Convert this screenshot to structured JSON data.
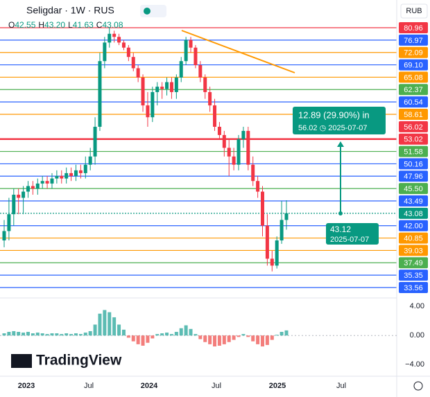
{
  "chart_data": {
    "type": "candlestick",
    "title": "Seligdar · 1W · RUS",
    "ohlc_header": [
      {
        "key": "O",
        "value": 42.55,
        "label": "42.55"
      },
      {
        "key": "H",
        "value": 43.2,
        "label": "43.20"
      },
      {
        "key": "L",
        "value": 41.63,
        "label": "41.63"
      },
      {
        "key": "C",
        "value": 43.08,
        "label": "43.08"
      }
    ],
    "currency": "RUB",
    "watermark": "TradingView",
    "x_labels": [
      "2023",
      "Jul",
      "2024",
      "Jul",
      "2025",
      "Jul"
    ],
    "levels": [
      {
        "value": 80.96,
        "label": "80.96",
        "color": "#f23645"
      },
      {
        "value": 76.97,
        "label": "76.97",
        "color": "#2962ff"
      },
      {
        "value": 72.09,
        "label": "72.09",
        "color": "#ff9800"
      },
      {
        "value": 69.1,
        "label": "69.10",
        "color": "#2962ff"
      },
      {
        "value": 65.08,
        "label": "65.08",
        "color": "#ff9800"
      },
      {
        "value": 62.37,
        "label": "62.37",
        "color": "#4caf50"
      },
      {
        "value": 60.54,
        "label": "60.54",
        "color": "#2962ff"
      },
      {
        "value": 58.61,
        "label": "58.61",
        "color": "#ff9800"
      },
      {
        "value": 56.02,
        "label": "56.02",
        "color": "#f23645",
        "style": "none"
      },
      {
        "value": 53.02,
        "label": "53.02",
        "color": "#f23645",
        "style": "thick"
      },
      {
        "value": 51.58,
        "label": "51.58",
        "color": "#4caf50"
      },
      {
        "value": 50.16,
        "label": "50.16",
        "color": "#2962ff"
      },
      {
        "value": 47.96,
        "label": "47.96",
        "color": "#2962ff"
      },
      {
        "value": 45.5,
        "label": "45.50",
        "color": "#4caf50"
      },
      {
        "value": 43.49,
        "label": "43.49",
        "color": "#2962ff"
      },
      {
        "value": 43.08,
        "label": "43.08",
        "color": "#089981",
        "style": "dotted"
      },
      {
        "value": 42,
        "label": "42.00",
        "color": "#2962ff"
      },
      {
        "value": 40.85,
        "label": "40.85",
        "color": "#ff9800"
      },
      {
        "value": 39.03,
        "label": "39.03",
        "color": "#ff9800"
      },
      {
        "value": 37.49,
        "label": "37.49",
        "color": "#4caf50"
      },
      {
        "value": 35.35,
        "label": "35.35",
        "color": "#2962ff"
      },
      {
        "value": 33.56,
        "label": "33.56",
        "color": "#2962ff"
      }
    ],
    "open": [
      40.5,
      41.5,
      43.0,
      44.5,
      44.0,
      45.0,
      46.0,
      45.5,
      46.5,
      47.0,
      46.5,
      47.5,
      48.0,
      47.5,
      48.5,
      48.0,
      49.0,
      48.5,
      50.0,
      51.0,
      56.0,
      70.0,
      76.0,
      79.0,
      78.0,
      76.0,
      74.0,
      71.0,
      68.0,
      65.0,
      60.0,
      58.0,
      62.0,
      63.0,
      62.5,
      64.0,
      62.0,
      65.0,
      70.0,
      77.0,
      74.0,
      69.0,
      65.0,
      62.0,
      60.0,
      56.0,
      54.0,
      52.0,
      51.0,
      50.0,
      53.0,
      55.0,
      50.0,
      47.0,
      45.0,
      42.0,
      38.0,
      37.0,
      40.5,
      42.5
    ],
    "high": [
      42.5,
      44.0,
      45.5,
      45.5,
      46.0,
      47.0,
      47.0,
      47.5,
      48.0,
      48.0,
      48.5,
      49.0,
      49.0,
      49.5,
      49.5,
      50.0,
      50.0,
      51.0,
      52.0,
      58.0,
      72.0,
      78.0,
      80.96,
      80.0,
      79.0,
      77.0,
      75.0,
      72.0,
      69.0,
      66.0,
      62.0,
      63.0,
      64.0,
      64.0,
      65.0,
      65.0,
      66.0,
      71.0,
      78.0,
      78.0,
      75.0,
      70.0,
      66.0,
      63.0,
      61.0,
      57.0,
      55.0,
      53.0,
      52.0,
      54.0,
      56.0,
      56.0,
      51.0,
      48.0,
      46.0,
      43.0,
      39.0,
      41.0,
      43.5,
      43.6
    ],
    "low": [
      39.5,
      40.5,
      42.0,
      43.0,
      43.0,
      44.0,
      44.5,
      44.5,
      45.5,
      45.5,
      45.5,
      46.5,
      46.5,
      46.5,
      47.0,
      47.0,
      47.5,
      47.5,
      49.0,
      50.0,
      55.0,
      68.0,
      74.0,
      76.0,
      75.0,
      73.0,
      70.0,
      67.0,
      64.0,
      59.0,
      56.0,
      57.0,
      60.0,
      61.0,
      61.5,
      61.0,
      61.0,
      64.0,
      69.0,
      72.0,
      68.0,
      64.0,
      61.0,
      59.0,
      55.0,
      53.0,
      51.0,
      48.0,
      49.0,
      49.0,
      52.0,
      49.0,
      46.0,
      44.0,
      41.0,
      37.0,
      36.0,
      36.5,
      40.0,
      41.63
    ],
    "close": [
      41.5,
      43.0,
      44.5,
      44.0,
      45.0,
      46.0,
      45.5,
      46.5,
      47.0,
      46.5,
      47.5,
      48.0,
      47.5,
      48.5,
      48.0,
      49.0,
      48.5,
      50.0,
      51.0,
      56.0,
      70.0,
      76.0,
      79.0,
      78.0,
      76.0,
      74.0,
      71.0,
      68.0,
      65.0,
      60.0,
      58.0,
      62.0,
      63.0,
      62.5,
      64.0,
      62.0,
      65.0,
      70.0,
      77.0,
      74.0,
      69.0,
      65.0,
      62.0,
      60.0,
      56.0,
      54.0,
      52.0,
      51.0,
      50.0,
      53.0,
      55.0,
      50.0,
      47.0,
      45.0,
      42.0,
      38.0,
      37.0,
      40.5,
      42.5,
      43.08
    ],
    "up_color": "#089981",
    "down_color": "#f23645",
    "annotations": {
      "measure": "12.89 (29.90%) in",
      "target": "56.02 ◷ 2025-07-07",
      "entry_price": "43.12",
      "entry_date": "2025-07-07"
    },
    "macd": {
      "histogram": [
        0.3,
        0.5,
        0.6,
        0.5,
        0.4,
        0.5,
        0.3,
        0.4,
        0.3,
        0.2,
        0.3,
        0.3,
        0.2,
        0.3,
        0.2,
        0.3,
        0.2,
        0.4,
        0.6,
        1.5,
        3.0,
        3.5,
        3.2,
        2.5,
        1.5,
        0.8,
        -0.3,
        -0.8,
        -1.2,
        -1.4,
        -1.0,
        -0.4,
        0.2,
        0.3,
        0.4,
        0.2,
        0.5,
        1.0,
        1.4,
        0.9,
        0.2,
        -0.5,
        -0.9,
        -1.2,
        -1.5,
        -1.4,
        -1.2,
        -0.9,
        -0.6,
        -0.2,
        0.2,
        -0.2,
        -0.8,
        -1.2,
        -1.5,
        -1.3,
        -0.6,
        0.1,
        0.5,
        0.7
      ],
      "ylim": [
        -5.4,
        4.4
      ],
      "yticks": [
        {
          "value": 4,
          "label": "4.00"
        },
        {
          "value": 0,
          "label": "0.00"
        },
        {
          "value": -4,
          "label": "−4.00"
        }
      ]
    }
  }
}
